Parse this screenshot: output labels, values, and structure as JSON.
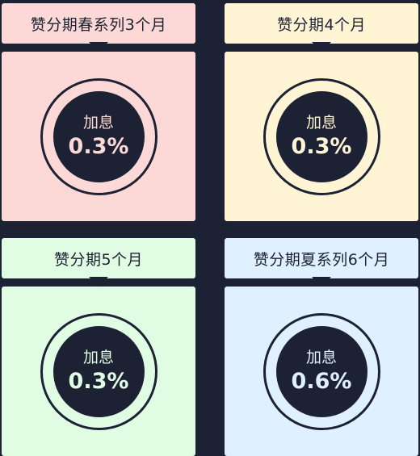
{
  "cards": [
    {
      "title": "赞分期春系列3个月",
      "rate_label": "加息",
      "rate_value": "0.3%",
      "bg": "#fcd9d6",
      "text": "#fcd9d6"
    },
    {
      "title": "赞分期4个月",
      "rate_label": "加息",
      "rate_value": "0.3%",
      "bg": "#fff5d5",
      "text": "#fff5d5"
    },
    {
      "title": "赞分期5个月",
      "rate_label": "加息",
      "rate_value": "0.3%",
      "bg": "#e0fde4",
      "text": "#e0fde4"
    },
    {
      "title": "赞分期夏系列6个月",
      "rate_label": "加息",
      "rate_value": "0.6%",
      "bg": "#dff0fe",
      "text": "#dff0fe"
    }
  ],
  "colors": {
    "background": "#1d2134"
  }
}
